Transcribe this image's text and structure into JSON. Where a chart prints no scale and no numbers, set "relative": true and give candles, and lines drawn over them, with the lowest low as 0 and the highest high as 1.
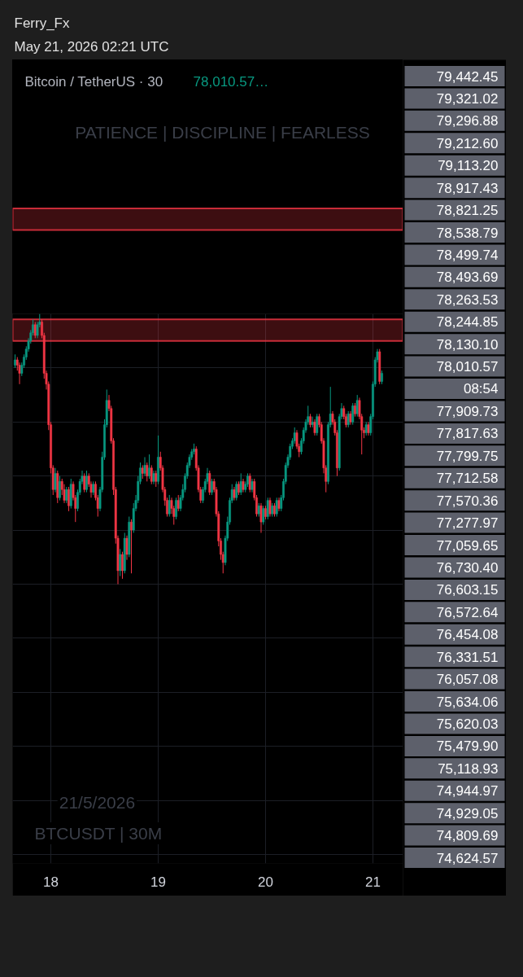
{
  "chart_data": {
    "type": "candlestick",
    "title": "Bitcoin / TetherUS · 30",
    "subtitle": "78,010.57…",
    "relative": true,
    "x": [
      "2026-05-17T16:00",
      "2026-05-17T16:30",
      "2026-05-17T17:00",
      "2026-05-17T17:30",
      "2026-05-17T18:00",
      "2026-05-17T18:30",
      "2026-05-17T19:00",
      "2026-05-17T19:30",
      "2026-05-17T20:00",
      "2026-05-17T20:30",
      "2026-05-17T21:00",
      "2026-05-17T21:30",
      "2026-05-17T22:00",
      "2026-05-17T22:30",
      "2026-05-17T23:00",
      "2026-05-17T23:30",
      "2026-05-18T00:00",
      "2026-05-18T00:30",
      "2026-05-18T01:00",
      "2026-05-18T01:30",
      "2026-05-18T02:00",
      "2026-05-18T02:30",
      "2026-05-18T03:00",
      "2026-05-18T03:30",
      "2026-05-18T04:00",
      "2026-05-18T04:30",
      "2026-05-18T05:00",
      "2026-05-18T05:30",
      "2026-05-18T06:00",
      "2026-05-18T06:30",
      "2026-05-18T07:00",
      "2026-05-18T07:30",
      "2026-05-18T08:00",
      "2026-05-18T08:30",
      "2026-05-18T09:00",
      "2026-05-18T09:30",
      "2026-05-18T10:00",
      "2026-05-18T10:30",
      "2026-05-18T11:00",
      "2026-05-18T11:30",
      "2026-05-18T12:00",
      "2026-05-18T12:30",
      "2026-05-18T13:00",
      "2026-05-18T13:30",
      "2026-05-18T14:00",
      "2026-05-18T14:30",
      "2026-05-18T15:00",
      "2026-05-18T15:30",
      "2026-05-18T16:00",
      "2026-05-18T16:30",
      "2026-05-18T17:00",
      "2026-05-18T17:30",
      "2026-05-18T18:00",
      "2026-05-18T18:30",
      "2026-05-18T19:00",
      "2026-05-18T19:30",
      "2026-05-18T20:00",
      "2026-05-18T20:30",
      "2026-05-18T21:00",
      "2026-05-18T21:30",
      "2026-05-18T22:00",
      "2026-05-18T22:30",
      "2026-05-18T23:00",
      "2026-05-18T23:30",
      "2026-05-19T00:00",
      "2026-05-19T00:30",
      "2026-05-19T01:00",
      "2026-05-19T01:30",
      "2026-05-19T02:00",
      "2026-05-19T02:30",
      "2026-05-19T03:00",
      "2026-05-19T03:30",
      "2026-05-19T04:00",
      "2026-05-19T04:30",
      "2026-05-19T05:00",
      "2026-05-19T05:30",
      "2026-05-19T06:00",
      "2026-05-19T06:30",
      "2026-05-19T07:00",
      "2026-05-19T07:30",
      "2026-05-19T08:00",
      "2026-05-19T08:30",
      "2026-05-19T09:00",
      "2026-05-19T09:30",
      "2026-05-19T10:00",
      "2026-05-19T10:30",
      "2026-05-19T11:00",
      "2026-05-19T11:30",
      "2026-05-19T12:00",
      "2026-05-19T12:30",
      "2026-05-19T13:00",
      "2026-05-19T13:30",
      "2026-05-19T14:00",
      "2026-05-19T14:30",
      "2026-05-19T15:00",
      "2026-05-19T15:30",
      "2026-05-19T16:00",
      "2026-05-19T16:30",
      "2026-05-19T17:00",
      "2026-05-19T17:30",
      "2026-05-19T18:00",
      "2026-05-19T18:30",
      "2026-05-19T19:00",
      "2026-05-19T19:30",
      "2026-05-19T20:00",
      "2026-05-19T20:30",
      "2026-05-19T21:00",
      "2026-05-19T21:30",
      "2026-05-19T22:00",
      "2026-05-19T22:30",
      "2026-05-19T23:00",
      "2026-05-19T23:30",
      "2026-05-20T00:00",
      "2026-05-20T00:30",
      "2026-05-20T01:00",
      "2026-05-20T01:30",
      "2026-05-20T02:00",
      "2026-05-20T02:30",
      "2026-05-20T03:00",
      "2026-05-20T03:30",
      "2026-05-20T04:00",
      "2026-05-20T04:30",
      "2026-05-20T05:00",
      "2026-05-20T05:30",
      "2026-05-20T06:00",
      "2026-05-20T06:30",
      "2026-05-20T07:00",
      "2026-05-20T07:30",
      "2026-05-20T08:00",
      "2026-05-20T08:30",
      "2026-05-20T09:00",
      "2026-05-20T09:30",
      "2026-05-20T10:00",
      "2026-05-20T10:30",
      "2026-05-20T11:00",
      "2026-05-20T11:30",
      "2026-05-20T12:00",
      "2026-05-20T12:30",
      "2026-05-20T13:00",
      "2026-05-20T13:30",
      "2026-05-20T14:00",
      "2026-05-20T14:30",
      "2026-05-20T15:00",
      "2026-05-20T15:30",
      "2026-05-20T16:00",
      "2026-05-20T16:30",
      "2026-05-20T17:00",
      "2026-05-20T17:30",
      "2026-05-20T18:00",
      "2026-05-20T18:30",
      "2026-05-20T19:00",
      "2026-05-20T19:30",
      "2026-05-20T20:00",
      "2026-05-20T20:30",
      "2026-05-20T21:00",
      "2026-05-20T21:30",
      "2026-05-20T22:00",
      "2026-05-20T22:30",
      "2026-05-20T23:00",
      "2026-05-20T23:30",
      "2026-05-21T00:00",
      "2026-05-21T00:30",
      "2026-05-21T01:00",
      "2026-05-21T01:30",
      "2026-05-21T02:00"
    ],
    "ohlc": [
      [
        0.81,
        0.85,
        0.8,
        0.83
      ],
      [
        0.83,
        0.84,
        0.79,
        0.81
      ],
      [
        0.81,
        0.82,
        0.74,
        0.78
      ],
      [
        0.78,
        0.82,
        0.77,
        0.81
      ],
      [
        0.81,
        0.85,
        0.8,
        0.84
      ],
      [
        0.84,
        0.88,
        0.83,
        0.87
      ],
      [
        0.87,
        0.91,
        0.86,
        0.9
      ],
      [
        0.9,
        0.94,
        0.89,
        0.93
      ],
      [
        0.93,
        0.98,
        0.92,
        0.96
      ],
      [
        0.96,
        0.97,
        0.91,
        0.92
      ],
      [
        0.92,
        0.97,
        0.91,
        0.96
      ],
      [
        0.96,
        1.0,
        0.95,
        0.97
      ],
      [
        0.97,
        0.98,
        0.91,
        0.92
      ],
      [
        0.92,
        0.93,
        0.76,
        0.78
      ],
      [
        0.78,
        0.79,
        0.72,
        0.74
      ],
      [
        0.74,
        0.75,
        0.57,
        0.59
      ],
      [
        0.59,
        0.6,
        0.41,
        0.43
      ],
      [
        0.43,
        0.44,
        0.33,
        0.35
      ],
      [
        0.35,
        0.43,
        0.34,
        0.41
      ],
      [
        0.41,
        0.42,
        0.3,
        0.32
      ],
      [
        0.32,
        0.4,
        0.31,
        0.38
      ],
      [
        0.38,
        0.39,
        0.33,
        0.35
      ],
      [
        0.35,
        0.37,
        0.3,
        0.31
      ],
      [
        0.31,
        0.36,
        0.3,
        0.35
      ],
      [
        0.35,
        0.36,
        0.27,
        0.29
      ],
      [
        0.29,
        0.39,
        0.28,
        0.37
      ],
      [
        0.37,
        0.38,
        0.31,
        0.32
      ],
      [
        0.32,
        0.33,
        0.23,
        0.28
      ],
      [
        0.28,
        0.35,
        0.27,
        0.34
      ],
      [
        0.34,
        0.39,
        0.33,
        0.38
      ],
      [
        0.38,
        0.42,
        0.37,
        0.4
      ],
      [
        0.4,
        0.41,
        0.34,
        0.35
      ],
      [
        0.35,
        0.42,
        0.34,
        0.4
      ],
      [
        0.4,
        0.41,
        0.36,
        0.37
      ],
      [
        0.37,
        0.38,
        0.32,
        0.34
      ],
      [
        0.34,
        0.38,
        0.33,
        0.37
      ],
      [
        0.37,
        0.38,
        0.31,
        0.32
      ],
      [
        0.32,
        0.33,
        0.25,
        0.28
      ],
      [
        0.28,
        0.36,
        0.27,
        0.35
      ],
      [
        0.35,
        0.49,
        0.34,
        0.47
      ],
      [
        0.47,
        0.61,
        0.46,
        0.59
      ],
      [
        0.59,
        0.72,
        0.58,
        0.68
      ],
      [
        0.68,
        0.7,
        0.64,
        0.65
      ],
      [
        0.65,
        0.66,
        0.52,
        0.53
      ],
      [
        0.53,
        0.54,
        0.33,
        0.35
      ],
      [
        0.35,
        0.36,
        0.15,
        0.17
      ],
      [
        0.17,
        0.18,
        0.0,
        0.05
      ],
      [
        0.05,
        0.13,
        0.03,
        0.11
      ],
      [
        0.11,
        0.12,
        0.02,
        0.05
      ],
      [
        0.05,
        0.19,
        0.04,
        0.17
      ],
      [
        0.17,
        0.18,
        0.09,
        0.11
      ],
      [
        0.11,
        0.25,
        0.1,
        0.23
      ],
      [
        0.23,
        0.24,
        0.04,
        0.2
      ],
      [
        0.2,
        0.3,
        0.19,
        0.28
      ],
      [
        0.28,
        0.33,
        0.27,
        0.31
      ],
      [
        0.31,
        0.4,
        0.3,
        0.38
      ],
      [
        0.38,
        0.45,
        0.37,
        0.43
      ],
      [
        0.43,
        0.44,
        0.39,
        0.41
      ],
      [
        0.41,
        0.47,
        0.4,
        0.44
      ],
      [
        0.44,
        0.45,
        0.38,
        0.4
      ],
      [
        0.4,
        0.48,
        0.39,
        0.43
      ],
      [
        0.43,
        0.44,
        0.37,
        0.38
      ],
      [
        0.38,
        0.42,
        0.37,
        0.41
      ],
      [
        0.41,
        0.42,
        0.36,
        0.38
      ],
      [
        0.38,
        0.55,
        0.37,
        0.47
      ],
      [
        0.47,
        0.49,
        0.42,
        0.43
      ],
      [
        0.43,
        0.44,
        0.34,
        0.35
      ],
      [
        0.35,
        0.36,
        0.29,
        0.31
      ],
      [
        0.31,
        0.32,
        0.25,
        0.26
      ],
      [
        0.26,
        0.33,
        0.25,
        0.31
      ],
      [
        0.31,
        0.32,
        0.26,
        0.28
      ],
      [
        0.28,
        0.29,
        0.22,
        0.25
      ],
      [
        0.25,
        0.32,
        0.24,
        0.31
      ],
      [
        0.31,
        0.33,
        0.27,
        0.28
      ],
      [
        0.28,
        0.33,
        0.27,
        0.32
      ],
      [
        0.32,
        0.37,
        0.31,
        0.35
      ],
      [
        0.35,
        0.41,
        0.34,
        0.4
      ],
      [
        0.4,
        0.45,
        0.39,
        0.44
      ],
      [
        0.44,
        0.48,
        0.43,
        0.47
      ],
      [
        0.47,
        0.5,
        0.46,
        0.49
      ],
      [
        0.49,
        0.52,
        0.48,
        0.5
      ],
      [
        0.5,
        0.51,
        0.42,
        0.43
      ],
      [
        0.43,
        0.44,
        0.34,
        0.35
      ],
      [
        0.35,
        0.36,
        0.3,
        0.31
      ],
      [
        0.31,
        0.36,
        0.3,
        0.35
      ],
      [
        0.35,
        0.39,
        0.34,
        0.38
      ],
      [
        0.38,
        0.43,
        0.37,
        0.41
      ],
      [
        0.41,
        0.42,
        0.33,
        0.34
      ],
      [
        0.34,
        0.39,
        0.33,
        0.38
      ],
      [
        0.38,
        0.39,
        0.34,
        0.35
      ],
      [
        0.35,
        0.36,
        0.25,
        0.26
      ],
      [
        0.26,
        0.27,
        0.14,
        0.16
      ],
      [
        0.16,
        0.17,
        0.09,
        0.11
      ],
      [
        0.11,
        0.12,
        0.04,
        0.08
      ],
      [
        0.08,
        0.18,
        0.07,
        0.17
      ],
      [
        0.17,
        0.25,
        0.16,
        0.23
      ],
      [
        0.23,
        0.32,
        0.22,
        0.31
      ],
      [
        0.31,
        0.37,
        0.3,
        0.35
      ],
      [
        0.35,
        0.36,
        0.31,
        0.32
      ],
      [
        0.32,
        0.38,
        0.31,
        0.37
      ],
      [
        0.37,
        0.38,
        0.33,
        0.34
      ],
      [
        0.34,
        0.41,
        0.33,
        0.38
      ],
      [
        0.38,
        0.39,
        0.34,
        0.35
      ],
      [
        0.35,
        0.38,
        0.34,
        0.37
      ],
      [
        0.37,
        0.41,
        0.36,
        0.4
      ],
      [
        0.4,
        0.41,
        0.34,
        0.35
      ],
      [
        0.35,
        0.39,
        0.34,
        0.38
      ],
      [
        0.38,
        0.39,
        0.31,
        0.32
      ],
      [
        0.32,
        0.33,
        0.25,
        0.26
      ],
      [
        0.26,
        0.3,
        0.25,
        0.29
      ],
      [
        0.29,
        0.3,
        0.19,
        0.23
      ],
      [
        0.23,
        0.29,
        0.22,
        0.28
      ],
      [
        0.28,
        0.29,
        0.24,
        0.25
      ],
      [
        0.25,
        0.32,
        0.24,
        0.31
      ],
      [
        0.31,
        0.32,
        0.25,
        0.26
      ],
      [
        0.26,
        0.3,
        0.25,
        0.29
      ],
      [
        0.29,
        0.3,
        0.25,
        0.26
      ],
      [
        0.26,
        0.32,
        0.25,
        0.31
      ],
      [
        0.31,
        0.32,
        0.27,
        0.28
      ],
      [
        0.28,
        0.33,
        0.27,
        0.32
      ],
      [
        0.32,
        0.39,
        0.31,
        0.38
      ],
      [
        0.38,
        0.45,
        0.37,
        0.44
      ],
      [
        0.44,
        0.48,
        0.43,
        0.47
      ],
      [
        0.47,
        0.52,
        0.46,
        0.51
      ],
      [
        0.51,
        0.54,
        0.5,
        0.53
      ],
      [
        0.53,
        0.58,
        0.52,
        0.56
      ],
      [
        0.56,
        0.57,
        0.5,
        0.51
      ],
      [
        0.51,
        0.52,
        0.47,
        0.49
      ],
      [
        0.49,
        0.54,
        0.48,
        0.53
      ],
      [
        0.53,
        0.58,
        0.52,
        0.57
      ],
      [
        0.57,
        0.61,
        0.56,
        0.6
      ],
      [
        0.6,
        0.66,
        0.59,
        0.62
      ],
      [
        0.62,
        0.63,
        0.58,
        0.59
      ],
      [
        0.59,
        0.62,
        0.58,
        0.6
      ],
      [
        0.6,
        0.61,
        0.55,
        0.56
      ],
      [
        0.56,
        0.63,
        0.55,
        0.62
      ],
      [
        0.62,
        0.63,
        0.58,
        0.59
      ],
      [
        0.59,
        0.6,
        0.52,
        0.53
      ],
      [
        0.53,
        0.54,
        0.41,
        0.43
      ],
      [
        0.43,
        0.44,
        0.34,
        0.38
      ],
      [
        0.38,
        0.6,
        0.37,
        0.59
      ],
      [
        0.59,
        0.73,
        0.58,
        0.63
      ],
      [
        0.63,
        0.64,
        0.59,
        0.6
      ],
      [
        0.6,
        0.61,
        0.55,
        0.56
      ],
      [
        0.56,
        0.57,
        0.4,
        0.43
      ],
      [
        0.43,
        0.63,
        0.42,
        0.62
      ],
      [
        0.62,
        0.67,
        0.61,
        0.65
      ],
      [
        0.65,
        0.66,
        0.61,
        0.62
      ],
      [
        0.62,
        0.63,
        0.58,
        0.59
      ],
      [
        0.59,
        0.64,
        0.58,
        0.63
      ],
      [
        0.63,
        0.64,
        0.59,
        0.6
      ],
      [
        0.6,
        0.67,
        0.59,
        0.66
      ],
      [
        0.66,
        0.67,
        0.62,
        0.63
      ],
      [
        0.63,
        0.7,
        0.62,
        0.68
      ],
      [
        0.68,
        0.69,
        0.61,
        0.62
      ],
      [
        0.62,
        0.63,
        0.48,
        0.57
      ],
      [
        0.57,
        0.58,
        0.54,
        0.56
      ],
      [
        0.56,
        0.6,
        0.55,
        0.59
      ],
      [
        0.59,
        0.6,
        0.55,
        0.56
      ],
      [
        0.56,
        0.63,
        0.55,
        0.62
      ],
      [
        0.62,
        0.75,
        0.61,
        0.74
      ],
      [
        0.74,
        0.84,
        0.73,
        0.83
      ],
      [
        0.83,
        0.87,
        0.82,
        0.86
      ],
      [
        0.86,
        0.87,
        0.74,
        0.75
      ],
      [
        0.75,
        0.79,
        0.74,
        0.78
      ]
    ],
    "colors": [
      "#089981",
      "#f23645",
      "#f23645",
      "#089981",
      "#089981",
      "#089981",
      "#089981",
      "#089981",
      "#089981",
      "#f23645",
      "#089981",
      "#089981",
      "#f23645",
      "#f23645",
      "#f23645",
      "#f23645",
      "#f23645",
      "#f23645",
      "#089981",
      "#f23645",
      "#089981",
      "#f23645",
      "#f23645",
      "#089981",
      "#f23645",
      "#089981",
      "#f23645",
      "#f23645",
      "#089981",
      "#089981",
      "#089981",
      "#f23645",
      "#089981",
      "#f23645",
      "#f23645",
      "#089981",
      "#f23645",
      "#f23645",
      "#089981",
      "#089981",
      "#089981",
      "#089981",
      "#f23645",
      "#f23645",
      "#f23645",
      "#f23645",
      "#f23645",
      "#089981",
      "#f23645",
      "#089981",
      "#f23645",
      "#089981",
      "#f23645",
      "#089981",
      "#089981",
      "#089981",
      "#089981",
      "#f23645",
      "#089981",
      "#f23645",
      "#089981",
      "#f23645",
      "#089981",
      "#f23645",
      "#089981",
      "#f23645",
      "#f23645",
      "#f23645",
      "#f23645",
      "#089981",
      "#f23645",
      "#f23645",
      "#089981",
      "#f23645",
      "#089981",
      "#089981",
      "#089981",
      "#089981",
      "#089981",
      "#089981",
      "#089981",
      "#f23645",
      "#f23645",
      "#f23645",
      "#089981",
      "#089981",
      "#089981",
      "#f23645",
      "#089981",
      "#f23645",
      "#f23645",
      "#f23645",
      "#f23645",
      "#f23645",
      "#089981",
      "#089981",
      "#089981",
      "#089981",
      "#f23645",
      "#089981",
      "#f23645",
      "#089981",
      "#f23645",
      "#089981",
      "#089981",
      "#f23645",
      "#089981",
      "#f23645",
      "#f23645",
      "#089981",
      "#f23645",
      "#089981",
      "#f23645",
      "#089981",
      "#f23645",
      "#089981",
      "#f23645",
      "#089981",
      "#f23645",
      "#089981",
      "#089981",
      "#089981",
      "#089981",
      "#089981",
      "#089981",
      "#089981",
      "#f23645",
      "#f23645",
      "#089981",
      "#089981",
      "#089981",
      "#089981",
      "#f23645",
      "#089981",
      "#f23645",
      "#089981",
      "#f23645",
      "#f23645",
      "#f23645",
      "#f23645",
      "#089981",
      "#089981",
      "#f23645",
      "#f23645",
      "#f23645",
      "#089981",
      "#089981",
      "#f23645",
      "#f23645",
      "#089981",
      "#f23645",
      "#089981",
      "#f23645",
      "#089981",
      "#f23645",
      "#f23645",
      "#f23645",
      "#089981",
      "#f23645",
      "#089981",
      "#089981",
      "#089981",
      "#089981",
      "#f23645",
      "#089981"
    ],
    "xlim": [
      "2026-05-17T15:27",
      "2026-05-21T06:44"
    ],
    "xticks": [
      {
        "value": "2026-05-18",
        "label": "18"
      },
      {
        "value": "2026-05-19",
        "label": "19"
      },
      {
        "value": "2026-05-20",
        "label": "20"
      },
      {
        "value": "2026-05-21",
        "label": "21"
      }
    ],
    "grid": true,
    "bands": [
      {
        "axis": "y",
        "from": 1.31,
        "to": 1.39,
        "color": "#f23645"
      },
      {
        "axis": "y",
        "from": 0.9,
        "to": 0.98,
        "color": "#f23645"
      }
    ],
    "annotations": [
      "Ferry_Fx",
      "May 21, 2026 02:21 UTC",
      "PATIENCE | DISCIPLINE | FEARLESS",
      "21/5/2026",
      "BTCUSDT | 30M",
      "79,442.45",
      "79,321.02",
      "79,296.88",
      "79,212.60",
      "79,113.20",
      "78,917.43",
      "78,821.25",
      "78,538.79",
      "78,499.74",
      "78,493.69",
      "78,263.53",
      "78,244.85",
      "78,130.10",
      "78,010.57",
      "08:54",
      "77,909.73",
      "77,817.63",
      "77,799.75",
      "77,712.58",
      "77,570.36",
      "77,277.97",
      "77,059.65",
      "76,730.40",
      "76,603.15",
      "76,572.64",
      "76,454.08",
      "76,331.51",
      "76,057.08",
      "75,634.06",
      "75,620.03",
      "75,479.90",
      "75,118.93",
      "74,944.97",
      "74,929.05",
      "74,809.69",
      "74,624.57"
    ]
  }
}
